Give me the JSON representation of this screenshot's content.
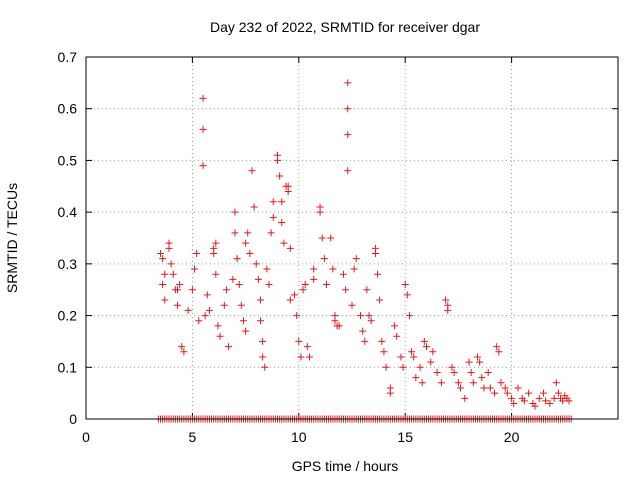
{
  "chart_data": {
    "type": "scatter",
    "title": "Day 232 of 2022, SRMTID for receiver dgar",
    "xlabel": "GPS time / hours",
    "ylabel": "SRMTID / TECUs",
    "xlim": [
      0,
      25
    ],
    "ylim": [
      0,
      0.7
    ],
    "x_ticks": [
      0,
      5,
      10,
      15,
      20
    ],
    "y_ticks": [
      0,
      0.1,
      0.2,
      0.3,
      0.4,
      0.5,
      0.6,
      0.7
    ],
    "x_tick_labels": [
      "0",
      "5",
      "10",
      "15",
      "20"
    ],
    "y_tick_labels": [
      "0",
      "0.1",
      "0.2",
      "0.3",
      "0.4",
      "0.5",
      "0.6",
      "0.7"
    ],
    "grid": true,
    "marker": "plus",
    "color": "#e41a1c",
    "series": [
      {
        "name": "SRMTID",
        "points": [
          [
            3.5,
            0.32
          ],
          [
            3.6,
            0.31
          ],
          [
            3.7,
            0.28
          ],
          [
            3.6,
            0.26
          ],
          [
            3.7,
            0.23
          ],
          [
            3.9,
            0.34
          ],
          [
            3.9,
            0.33
          ],
          [
            4.0,
            0.3
          ],
          [
            4.1,
            0.28
          ],
          [
            4.2,
            0.25
          ],
          [
            4.3,
            0.22
          ],
          [
            4.3,
            0.25
          ],
          [
            4.4,
            0.26
          ],
          [
            4.5,
            0.14
          ],
          [
            4.6,
            0.13
          ],
          [
            4.8,
            0.21
          ],
          [
            5.0,
            0.25
          ],
          [
            5.1,
            0.29
          ],
          [
            5.2,
            0.32
          ],
          [
            5.3,
            0.19
          ],
          [
            5.5,
            0.62
          ],
          [
            5.5,
            0.56
          ],
          [
            5.5,
            0.49
          ],
          [
            5.6,
            0.2
          ],
          [
            5.7,
            0.24
          ],
          [
            5.8,
            0.21
          ],
          [
            6.0,
            0.33
          ],
          [
            6.0,
            0.32
          ],
          [
            6.1,
            0.34
          ],
          [
            6.1,
            0.28
          ],
          [
            6.2,
            0.18
          ],
          [
            6.3,
            0.16
          ],
          [
            6.5,
            0.22
          ],
          [
            6.6,
            0.25
          ],
          [
            6.7,
            0.14
          ],
          [
            6.9,
            0.27
          ],
          [
            7.0,
            0.4
          ],
          [
            7.0,
            0.36
          ],
          [
            7.1,
            0.31
          ],
          [
            7.2,
            0.26
          ],
          [
            7.3,
            0.22
          ],
          [
            7.4,
            0.19
          ],
          [
            7.5,
            0.17
          ],
          [
            7.5,
            0.34
          ],
          [
            7.6,
            0.36
          ],
          [
            7.7,
            0.32
          ],
          [
            7.8,
            0.48
          ],
          [
            7.9,
            0.41
          ],
          [
            8.0,
            0.3
          ],
          [
            8.1,
            0.27
          ],
          [
            8.2,
            0.23
          ],
          [
            8.2,
            0.19
          ],
          [
            8.3,
            0.15
          ],
          [
            8.3,
            0.12
          ],
          [
            8.4,
            0.1
          ],
          [
            8.5,
            0.29
          ],
          [
            8.6,
            0.26
          ],
          [
            8.7,
            0.36
          ],
          [
            8.8,
            0.39
          ],
          [
            8.8,
            0.42
          ],
          [
            9.0,
            0.51
          ],
          [
            9.0,
            0.5
          ],
          [
            9.1,
            0.47
          ],
          [
            9.2,
            0.42
          ],
          [
            9.2,
            0.38
          ],
          [
            9.3,
            0.34
          ],
          [
            9.4,
            0.45
          ],
          [
            9.5,
            0.45
          ],
          [
            9.5,
            0.44
          ],
          [
            9.6,
            0.33
          ],
          [
            9.6,
            0.23
          ],
          [
            9.8,
            0.24
          ],
          [
            9.9,
            0.2
          ],
          [
            10.0,
            0.15
          ],
          [
            10.1,
            0.12
          ],
          [
            10.2,
            0.25
          ],
          [
            10.3,
            0.26
          ],
          [
            10.4,
            0.14
          ],
          [
            10.5,
            0.12
          ],
          [
            10.7,
            0.29
          ],
          [
            10.7,
            0.27
          ],
          [
            11.0,
            0.4
          ],
          [
            11.0,
            0.41
          ],
          [
            11.1,
            0.35
          ],
          [
            11.2,
            0.31
          ],
          [
            11.3,
            0.26
          ],
          [
            11.5,
            0.35
          ],
          [
            11.6,
            0.29
          ],
          [
            11.7,
            0.2
          ],
          [
            11.7,
            0.19
          ],
          [
            11.8,
            0.18
          ],
          [
            11.9,
            0.18
          ],
          [
            12.3,
            0.65
          ],
          [
            12.3,
            0.6
          ],
          [
            12.3,
            0.55
          ],
          [
            12.3,
            0.48
          ],
          [
            12.1,
            0.28
          ],
          [
            12.2,
            0.25
          ],
          [
            12.5,
            0.22
          ],
          [
            12.6,
            0.29
          ],
          [
            12.7,
            0.31
          ],
          [
            12.9,
            0.2
          ],
          [
            13.0,
            0.17
          ],
          [
            13.1,
            0.15
          ],
          [
            13.2,
            0.25
          ],
          [
            13.3,
            0.2
          ],
          [
            13.4,
            0.19
          ],
          [
            13.6,
            0.33
          ],
          [
            13.6,
            0.32
          ],
          [
            13.7,
            0.28
          ],
          [
            13.8,
            0.23
          ],
          [
            13.9,
            0.15
          ],
          [
            14.0,
            0.13
          ],
          [
            14.1,
            0.1
          ],
          [
            14.3,
            0.06
          ],
          [
            14.3,
            0.05
          ],
          [
            14.5,
            0.18
          ],
          [
            14.6,
            0.16
          ],
          [
            14.8,
            0.12
          ],
          [
            14.9,
            0.1
          ],
          [
            15.0,
            0.26
          ],
          [
            15.1,
            0.24
          ],
          [
            15.2,
            0.2
          ],
          [
            15.3,
            0.13
          ],
          [
            15.4,
            0.12
          ],
          [
            15.5,
            0.08
          ],
          [
            15.7,
            0.1
          ],
          [
            15.8,
            0.07
          ],
          [
            15.9,
            0.15
          ],
          [
            16.0,
            0.14
          ],
          [
            16.2,
            0.11
          ],
          [
            16.3,
            0.13
          ],
          [
            16.5,
            0.09
          ],
          [
            16.7,
            0.07
          ],
          [
            16.9,
            0.23
          ],
          [
            17.0,
            0.22
          ],
          [
            17.0,
            0.21
          ],
          [
            17.2,
            0.1
          ],
          [
            17.3,
            0.09
          ],
          [
            17.5,
            0.07
          ],
          [
            17.6,
            0.06
          ],
          [
            17.8,
            0.04
          ],
          [
            18.0,
            0.11
          ],
          [
            18.1,
            0.09
          ],
          [
            18.2,
            0.07
          ],
          [
            18.4,
            0.12
          ],
          [
            18.5,
            0.11
          ],
          [
            18.6,
            0.08
          ],
          [
            18.7,
            0.06
          ],
          [
            18.9,
            0.09
          ],
          [
            19.0,
            0.06
          ],
          [
            19.2,
            0.05
          ],
          [
            19.3,
            0.14
          ],
          [
            19.4,
            0.13
          ],
          [
            19.5,
            0.07
          ],
          [
            19.7,
            0.06
          ],
          [
            19.8,
            0.05
          ],
          [
            20.0,
            0.04
          ],
          [
            20.1,
            0.03
          ],
          [
            20.3,
            0.06
          ],
          [
            20.5,
            0.04
          ],
          [
            20.6,
            0.035
          ],
          [
            20.8,
            0.05
          ],
          [
            21.0,
            0.03
          ],
          [
            21.1,
            0.025
          ],
          [
            21.3,
            0.04
          ],
          [
            21.5,
            0.05
          ],
          [
            21.6,
            0.035
          ],
          [
            21.8,
            0.03
          ],
          [
            22.0,
            0.04
          ],
          [
            22.1,
            0.07
          ],
          [
            22.2,
            0.05
          ],
          [
            22.3,
            0.04
          ],
          [
            22.4,
            0.035
          ],
          [
            22.5,
            0.045
          ],
          [
            22.6,
            0.04
          ],
          [
            22.7,
            0.035
          ]
        ],
        "baseline": {
          "y": 0,
          "x_from": 3.4,
          "x_to": 22.8,
          "step": 0.1
        }
      }
    ]
  }
}
